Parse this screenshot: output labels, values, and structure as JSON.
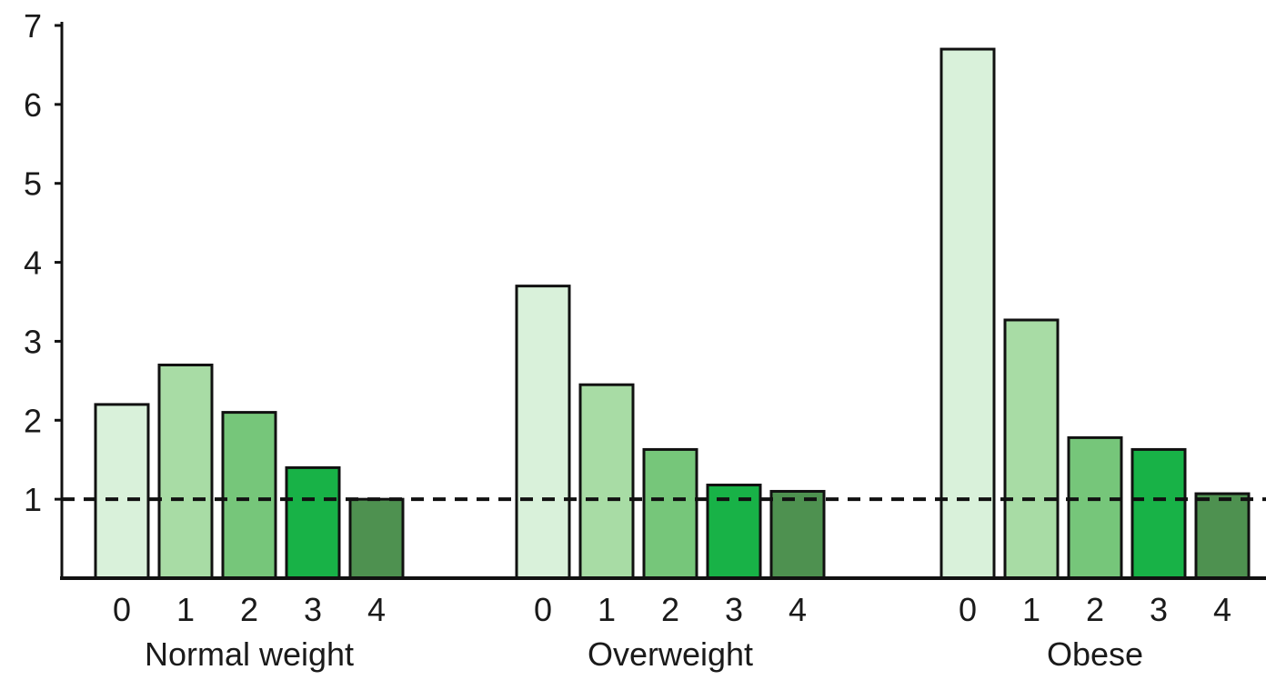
{
  "chart_data": {
    "type": "bar",
    "title": "",
    "xlabel": "",
    "ylabel": "",
    "ylim": [
      0,
      7
    ],
    "yticks": [
      1,
      2,
      3,
      4,
      5,
      6,
      7
    ],
    "reference_line": {
      "y": 1,
      "style": "dashed"
    },
    "grid": false,
    "legend": "none",
    "groups": [
      {
        "name": "Normal weight",
        "categories": [
          "0",
          "1",
          "2",
          "3",
          "4"
        ],
        "values": [
          2.2,
          2.7,
          2.1,
          1.4,
          1.0
        ]
      },
      {
        "name": "Overweight",
        "categories": [
          "0",
          "1",
          "2",
          "3",
          "4"
        ],
        "values": [
          3.7,
          2.45,
          1.63,
          1.18,
          1.1
        ]
      },
      {
        "name": "Obese",
        "categories": [
          "0",
          "1",
          "2",
          "3",
          "4"
        ],
        "values": [
          6.7,
          3.27,
          1.78,
          1.63,
          1.07
        ]
      }
    ],
    "colors": [
      "#d9f1da",
      "#a8dca5",
      "#76c67a",
      "#18b247",
      "#4e9150"
    ]
  }
}
